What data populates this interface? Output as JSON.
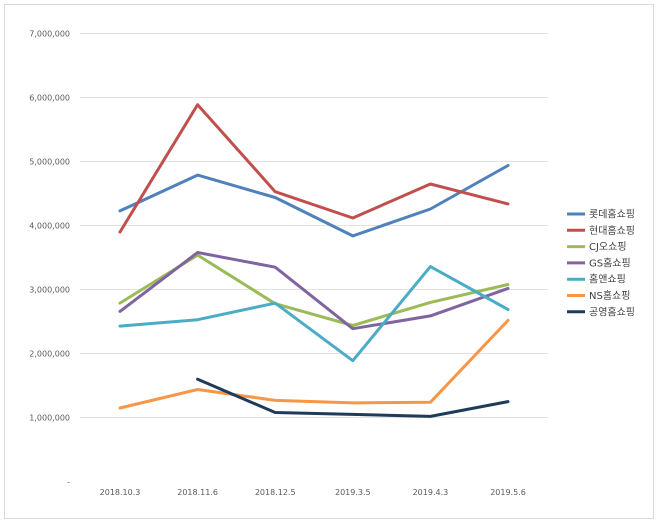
{
  "chart_data": {
    "type": "line",
    "title": "",
    "xlabel": "",
    "ylabel": "",
    "grid": true,
    "legend_position": "right",
    "categories": [
      "2018.10.3",
      "2018.11.6",
      "2018.12.5",
      "2019.3.5",
      "2019.4.3",
      "2019.5.6"
    ],
    "ylim": [
      0,
      7000000
    ],
    "y_ticks": [
      {
        "value": 0,
        "label": "-"
      },
      {
        "value": 1000000,
        "label": "1,000,000"
      },
      {
        "value": 2000000,
        "label": "2,000,000"
      },
      {
        "value": 3000000,
        "label": "3,000,000"
      },
      {
        "value": 4000000,
        "label": "4,000,000"
      },
      {
        "value": 5000000,
        "label": "5,000,000"
      },
      {
        "value": 6000000,
        "label": "6,000,000"
      },
      {
        "value": 7000000,
        "label": "7,000,000"
      }
    ],
    "series": [
      {
        "name": "롯데홈쇼핑",
        "color": "#4F81BD",
        "values": [
          4220000,
          4780000,
          4430000,
          3830000,
          4250000,
          4930000
        ]
      },
      {
        "name": "현대홈쇼핑",
        "color": "#C0504D",
        "values": [
          3890000,
          5880000,
          4520000,
          4110000,
          4640000,
          4330000
        ]
      },
      {
        "name": "CJ오쇼핑",
        "color": "#9BBB59",
        "values": [
          2780000,
          3530000,
          2770000,
          2430000,
          2790000,
          3070000
        ]
      },
      {
        "name": "GS홈쇼핑",
        "color": "#8064A2",
        "values": [
          2650000,
          3570000,
          3340000,
          2380000,
          2580000,
          3010000
        ]
      },
      {
        "name": "홈앤쇼핑",
        "color": "#4BACC6",
        "values": [
          2420000,
          2520000,
          2780000,
          1880000,
          3350000,
          2680000
        ]
      },
      {
        "name": "NS홈쇼핑",
        "color": "#F79646",
        "values": [
          1140000,
          1430000,
          1260000,
          1220000,
          1230000,
          2510000
        ]
      },
      {
        "name": "공영홈쇼핑",
        "color": "#1F3B5B",
        "values": [
          null,
          1590000,
          1070000,
          1040000,
          1010000,
          1240000
        ]
      }
    ]
  }
}
